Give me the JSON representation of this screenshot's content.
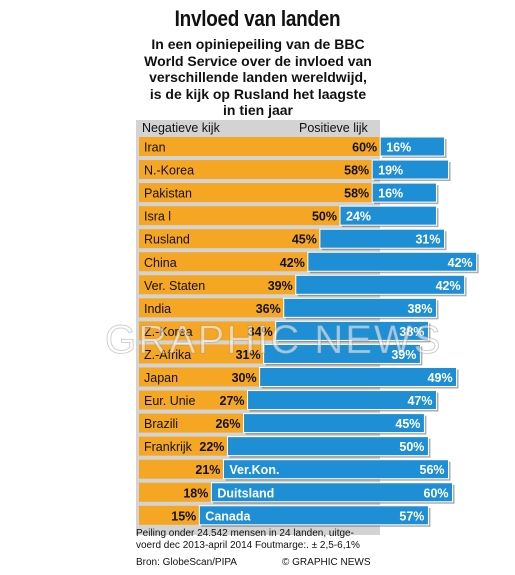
{
  "title": "Invloed van landen",
  "subtitle": "In een opiniepeiling van de BBC\nWorld Service over de invloed van\nverschillende landen wereldwijd,\nis de kijk op Rusland het laagste\nin tien jaar",
  "colors": {
    "negative": "#f5a623",
    "positive": "#1e8fd5",
    "panel": "#d3d3d3"
  },
  "chart_data": {
    "type": "bar",
    "negative_label": "Negatieve kijk",
    "positive_label": "Positieve lijk",
    "unit": "%",
    "categories": [
      "Iran",
      "N.-Korea",
      "Pakistan",
      "Isra l",
      "Rusland",
      "China",
      "Ver. Staten",
      "India",
      "Z.-Korea",
      "Z.-Afrika",
      "Japan",
      "Eur. Unie",
      "Brazili",
      "Frankrijk",
      "Ver.Kon.",
      "Duitsland",
      "Canada"
    ],
    "series": [
      {
        "name": "Negatieve kijk",
        "values": [
          60,
          58,
          58,
          50,
          45,
          42,
          39,
          36,
          34,
          31,
          30,
          27,
          26,
          22,
          21,
          18,
          15
        ]
      },
      {
        "name": "Positieve lijk",
        "values": [
          16,
          19,
          16,
          24,
          31,
          42,
          42,
          38,
          38,
          39,
          49,
          47,
          45,
          50,
          56,
          60,
          57
        ]
      }
    ]
  },
  "footnote": "Peiling onder 24.542 mensen in 24 landen, uitge-\nvoerd dec 2013-april 2014 Foutmarge:. ± 2,5-6,1%",
  "source": "Bron: GlobeScan/PIPA",
  "credit": "© GRAPHIC NEWS",
  "watermark": "GRAPHIC NEWS"
}
